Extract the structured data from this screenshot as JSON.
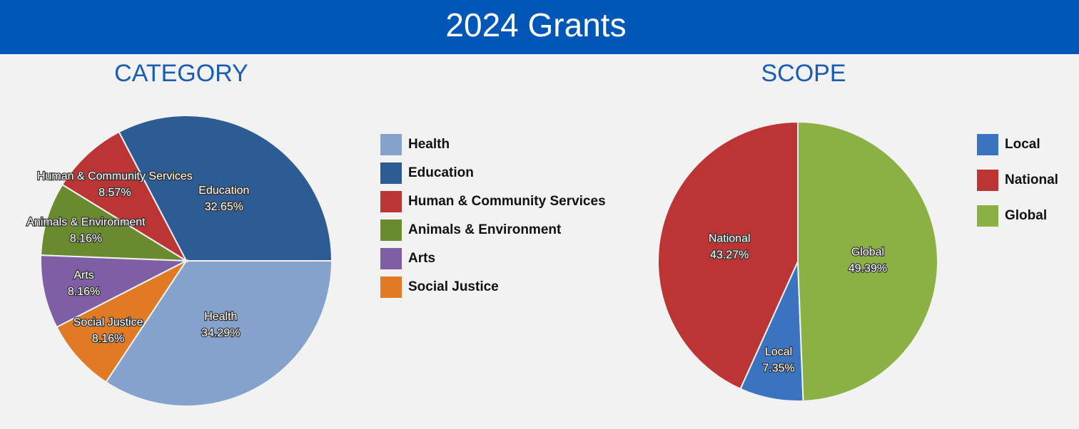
{
  "header": {
    "title": "2024 Grants"
  },
  "chart_data": [
    {
      "type": "pie",
      "title": "CATEGORY",
      "categories": [
        "Health",
        "Education",
        "Human & Community Services",
        "Animals & Environment",
        "Arts",
        "Social Justice"
      ],
      "values": [
        34.29,
        32.65,
        8.57,
        8.16,
        8.16,
        8.16
      ],
      "value_labels": [
        "34.29%",
        "32.65%",
        "8.57%",
        "8.16%",
        "8.16%",
        "8.16%"
      ],
      "colors": [
        "#84a2cb",
        "#2d5b94",
        "#bb3535",
        "#6a8a2e",
        "#7e5fa6",
        "#e07a24"
      ],
      "legend": "right"
    },
    {
      "type": "pie",
      "title": "SCOPE",
      "categories": [
        "Local",
        "National",
        "Global"
      ],
      "values": [
        7.35,
        43.27,
        49.39
      ],
      "value_labels": [
        "7.35%",
        "43.27%",
        "49.39%"
      ],
      "colors": [
        "#3a73c0",
        "#bb3535",
        "#8bb043"
      ],
      "legend": "right"
    }
  ]
}
